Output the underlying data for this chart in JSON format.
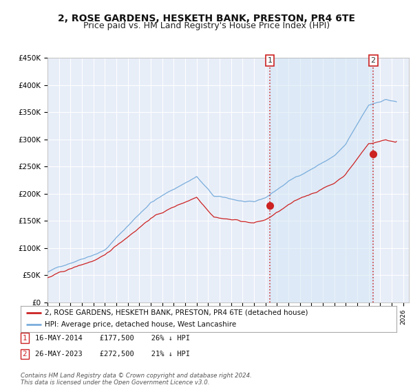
{
  "title": "2, ROSE GARDENS, HESKETH BANK, PRESTON, PR4 6TE",
  "subtitle": "Price paid vs. HM Land Registry's House Price Index (HPI)",
  "title_fontsize": 10,
  "subtitle_fontsize": 9,
  "ylim": [
    0,
    450000
  ],
  "yticks": [
    0,
    50000,
    100000,
    150000,
    200000,
    250000,
    300000,
    350000,
    400000,
    450000
  ],
  "ytick_labels": [
    "£0",
    "£50K",
    "£100K",
    "£150K",
    "£200K",
    "£250K",
    "£300K",
    "£350K",
    "£400K",
    "£450K"
  ],
  "background_color": "#ffffff",
  "plot_bg_color": "#e8eef8",
  "grid_color": "#ffffff",
  "hpi_color": "#7aaddc",
  "price_color": "#cc2222",
  "vline_color": "#cc2222",
  "shade_color": "#d0e4f5",
  "legend_line1": "2, ROSE GARDENS, HESKETH BANK, PRESTON, PR4 6TE (detached house)",
  "legend_line2": "HPI: Average price, detached house, West Lancashire",
  "sale1_info": "16-MAY-2014    £177,500    26% ↓ HPI",
  "sale2_info": "26-MAY-2023    £272,500    21% ↓ HPI",
  "footer": "Contains HM Land Registry data © Crown copyright and database right 2024.\nThis data is licensed under the Open Government Licence v3.0.",
  "xtick_years": [
    1995,
    1996,
    1997,
    1998,
    1999,
    2000,
    2001,
    2002,
    2003,
    2004,
    2005,
    2006,
    2007,
    2008,
    2009,
    2010,
    2011,
    2012,
    2013,
    2014,
    2015,
    2016,
    2017,
    2018,
    2019,
    2020,
    2021,
    2022,
    2023,
    2024,
    2025,
    2026
  ],
  "sale1_x": 2014.37,
  "sale1_y": 177500,
  "sale2_x": 2023.39,
  "sale2_y": 272500,
  "x_start": 1995.0,
  "x_end": 2026.5,
  "noise_seed": 42
}
